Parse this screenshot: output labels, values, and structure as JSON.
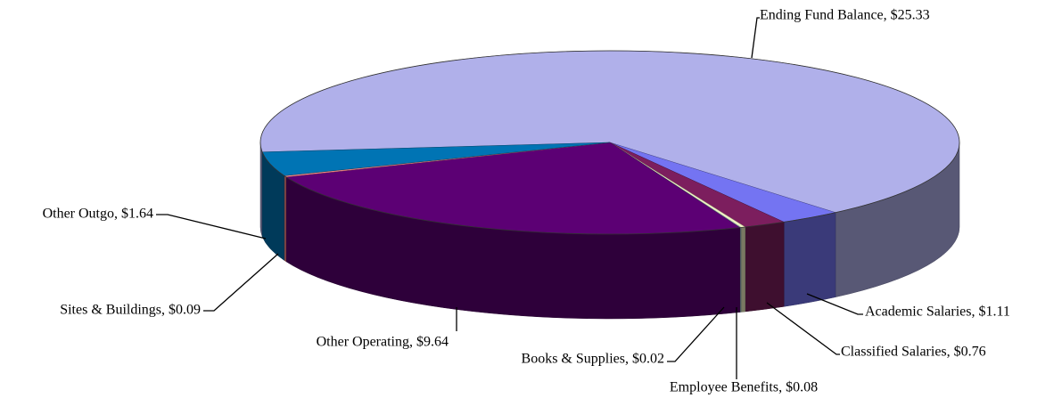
{
  "chart_data": {
    "type": "pie",
    "labels": [
      "Ending Fund Balance, $25.33",
      "Academic Salaries, $1.11",
      "Classified Salaries, $0.76",
      "Employee Benefits, $0.08",
      "Books & Supplies, $0.02",
      "Other Operating, $9.64",
      "Sites & Buildings, $0.09",
      "Other Outgo, $1.64"
    ],
    "values": [
      25.33,
      1.11,
      0.76,
      0.08,
      0.02,
      9.64,
      0.09,
      1.64
    ],
    "colors": [
      "#b0b0ea",
      "#7474f2",
      "#7c1e5e",
      "#f2f2c4",
      "#b2e2e2",
      "#5c0074",
      "#ff8a8a",
      "#0074b4"
    ]
  }
}
